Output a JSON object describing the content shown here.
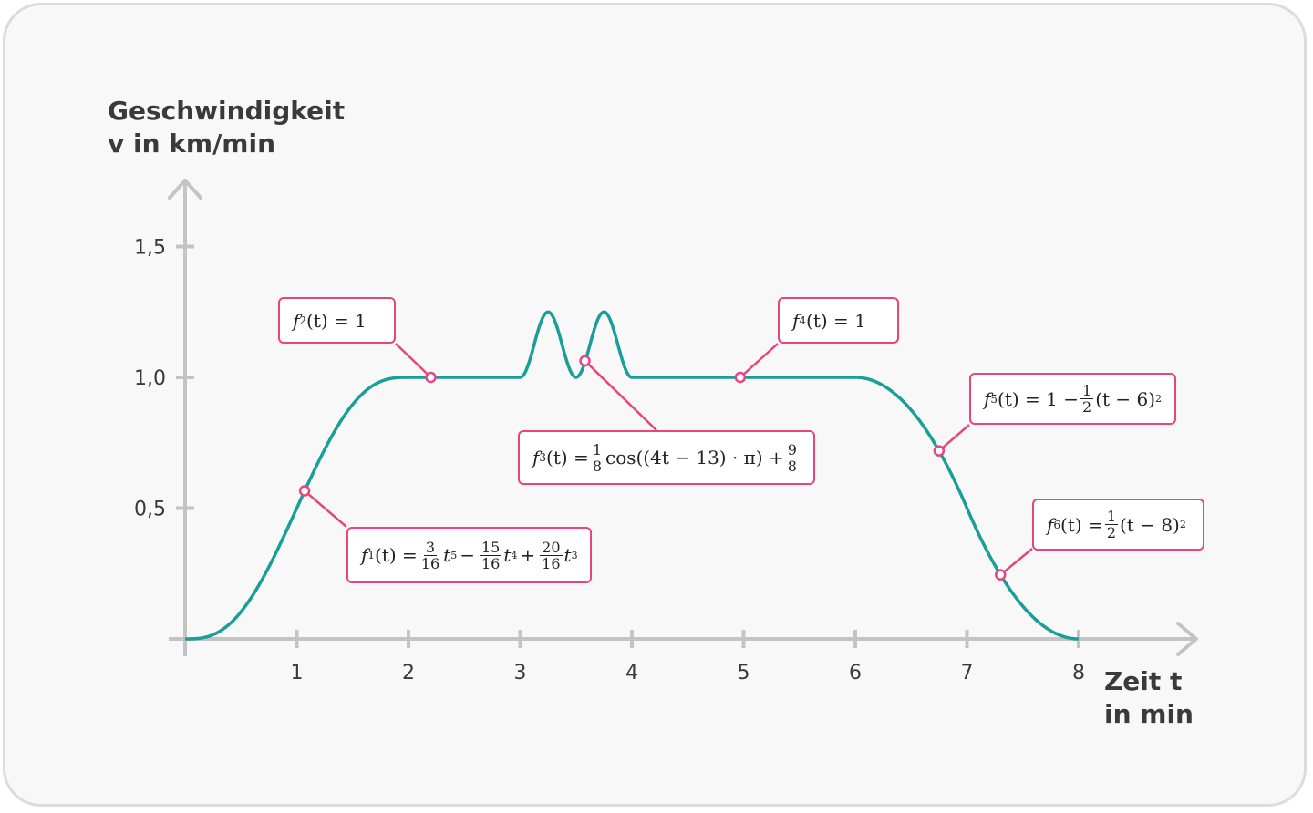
{
  "chart_data": {
    "type": "line",
    "xlabel": [
      "Zeit t",
      "in min"
    ],
    "ylabel": [
      "Geschwindigkeit",
      "v in km/min"
    ],
    "xlim": [
      0,
      8.9
    ],
    "ylim": [
      0,
      1.65
    ],
    "x_ticks": [
      "1",
      "2",
      "3",
      "4",
      "5",
      "6",
      "7",
      "8"
    ],
    "y_ticks": [
      {
        "value": 0.5,
        "label": "0,5"
      },
      {
        "value": 1.0,
        "label": "1,0"
      },
      {
        "value": 1.5,
        "label": "1,5"
      }
    ],
    "line_color": "#1a9e9a",
    "annotation_color": "#e8457e",
    "pieces": [
      {
        "name": "f1",
        "domain": [
          0,
          2
        ]
      },
      {
        "name": "f2",
        "domain": [
          2,
          3
        ]
      },
      {
        "name": "f3",
        "domain": [
          3,
          4
        ]
      },
      {
        "name": "f4",
        "domain": [
          4,
          6
        ]
      },
      {
        "name": "f5",
        "domain": [
          6,
          7
        ]
      },
      {
        "name": "f6",
        "domain": [
          7,
          8
        ]
      }
    ],
    "annotations": [
      {
        "id": "f1",
        "point": [
          1.07,
          0.566
        ]
      },
      {
        "id": "f2",
        "point": [
          2.2,
          1.0
        ]
      },
      {
        "id": "f3",
        "point": [
          3.58,
          1.063
        ]
      },
      {
        "id": "f4",
        "point": [
          4.97,
          1.0
        ]
      },
      {
        "id": "f5",
        "point": [
          6.75,
          0.719
        ]
      },
      {
        "id": "f6",
        "point": [
          7.3,
          0.245
        ]
      }
    ]
  },
  "formulas": {
    "f1": {
      "lhs_f": "f",
      "lhs_sub": "1",
      "lhs_arg": "(t) =",
      "n1": "3",
      "d1": "16",
      "t1": "t",
      "e1": "5",
      "op1": "−",
      "n2": "15",
      "d2": "16",
      "t2": "t",
      "e2": "4",
      "op2": "+",
      "n3": "20",
      "d3": "16",
      "t3": "t",
      "e3": "3"
    },
    "f2": {
      "lhs_f": "f",
      "lhs_sub": "2",
      "lhs_arg": "(t) = 1"
    },
    "f3": {
      "lhs_f": "f",
      "lhs_sub": "3",
      "lhs_arg": "(t) =",
      "n1": "1",
      "d1": "8",
      "mid": "cos((4t − 13) · π) +",
      "n2": "9",
      "d2": "8"
    },
    "f4": {
      "lhs_f": "f",
      "lhs_sub": "4",
      "lhs_arg": "(t) = 1"
    },
    "f5": {
      "lhs_f": "f",
      "lhs_sub": "5",
      "lhs_arg": "(t) = 1 −",
      "n1": "1",
      "d1": "2",
      "rest": "(t − 6)",
      "exp": "2"
    },
    "f6": {
      "lhs_f": "f",
      "lhs_sub": "6",
      "lhs_arg": "(t) =",
      "n1": "1",
      "d1": "2",
      "rest": "(t − 8)",
      "exp": "2"
    }
  }
}
